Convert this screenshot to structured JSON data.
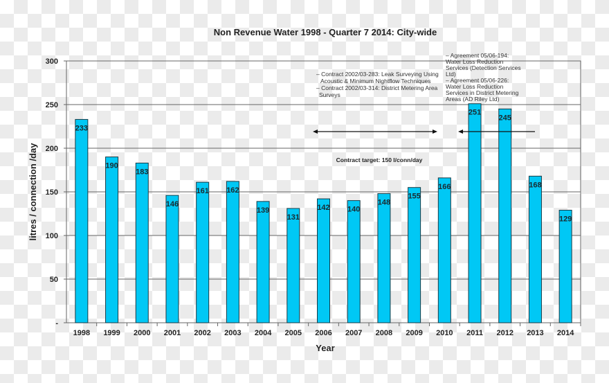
{
  "chart_data": {
    "type": "bar",
    "title": "Non Revenue Water 1998 - Quarter 7 2014: City-wide",
    "xlabel": "Year",
    "ylabel": "litres / connection /day",
    "ylim": [
      0,
      300
    ],
    "yticks": [
      "-",
      "50",
      "100",
      "150",
      "200",
      "250",
      "300"
    ],
    "grid": true,
    "bar_color": "#00c8f5",
    "categories": [
      "1998",
      "1999",
      "2000",
      "2001",
      "2002",
      "2003",
      "2004",
      "2005",
      "2006",
      "2007",
      "2008",
      "2009",
      "2010",
      "2011",
      "2012",
      "2013",
      "2014"
    ],
    "values": [
      233,
      190,
      183,
      146,
      161,
      162,
      139,
      131,
      142,
      140,
      148,
      155,
      166,
      251,
      245,
      168,
      129
    ],
    "annotations": {
      "target": "Contract target: 150 l/conn/day",
      "contracts": [
        "– Contract 2002/03-283:  Leak Surveying Using",
        "Acoustic & Minimum Nightflow Techniques",
        "– Contract 2002/03-314:  District Metering  Area",
        "Surveys"
      ],
      "agreements": [
        "– Agreement 05/06-194:",
        "Water Loss Reduction",
        "Services (Detection Services",
        "Ltd)",
        "– Agreement 05/06-226:",
        "Water Loss Reduction",
        "Services in District Metering",
        "Areas (AD Riley Ltd)"
      ]
    }
  }
}
